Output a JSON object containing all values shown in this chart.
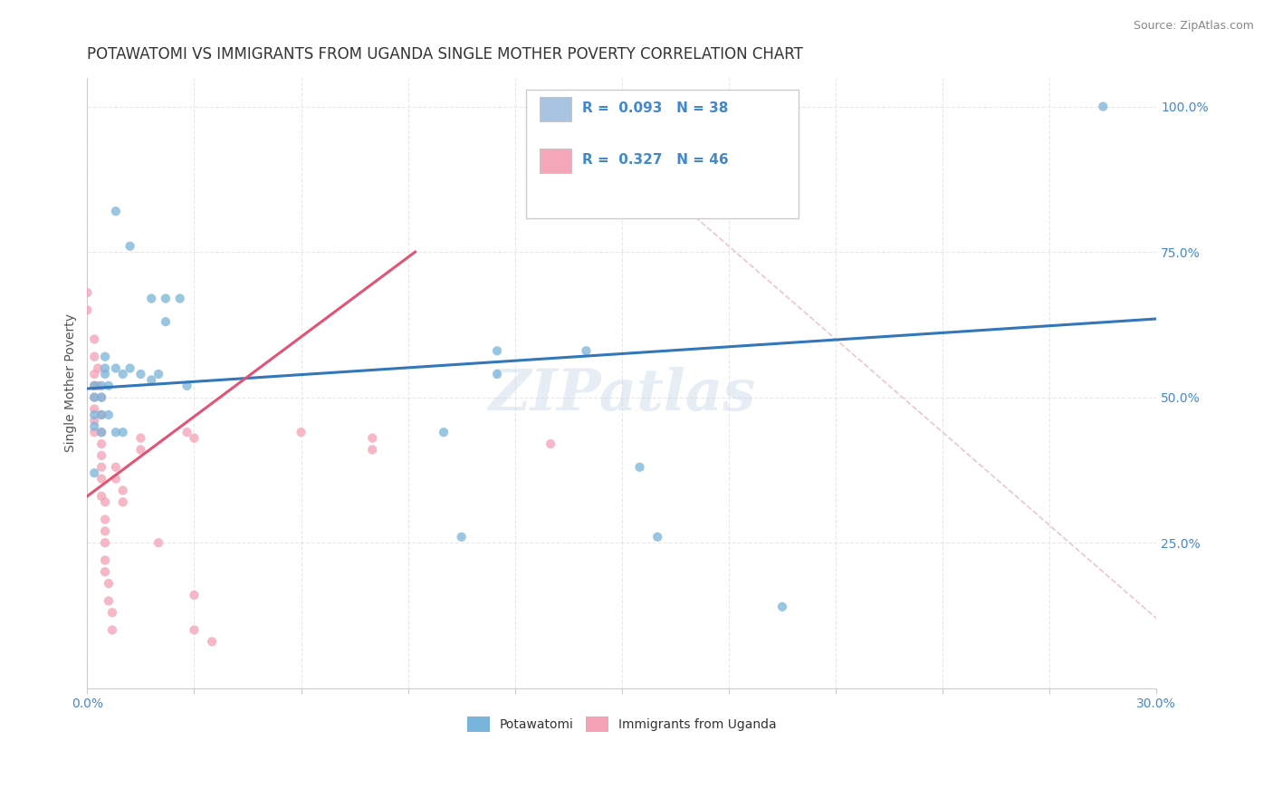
{
  "title": "POTAWATOMI VS IMMIGRANTS FROM UGANDA SINGLE MOTHER POVERTY CORRELATION CHART",
  "source": "Source: ZipAtlas.com",
  "ylabel": "Single Mother Poverty",
  "xlim": [
    0.0,
    0.3
  ],
  "ylim": [
    0.0,
    1.05
  ],
  "blue_dots": [
    [
      0.008,
      0.82
    ],
    [
      0.012,
      0.76
    ],
    [
      0.018,
      0.67
    ],
    [
      0.022,
      0.67
    ],
    [
      0.026,
      0.67
    ],
    [
      0.022,
      0.63
    ],
    [
      0.005,
      0.57
    ],
    [
      0.005,
      0.55
    ],
    [
      0.005,
      0.54
    ],
    [
      0.008,
      0.55
    ],
    [
      0.01,
      0.54
    ],
    [
      0.012,
      0.55
    ],
    [
      0.015,
      0.54
    ],
    [
      0.018,
      0.53
    ],
    [
      0.02,
      0.54
    ],
    [
      0.002,
      0.52
    ],
    [
      0.004,
      0.52
    ],
    [
      0.006,
      0.52
    ],
    [
      0.002,
      0.5
    ],
    [
      0.004,
      0.5
    ],
    [
      0.028,
      0.52
    ],
    [
      0.002,
      0.47
    ],
    [
      0.004,
      0.47
    ],
    [
      0.006,
      0.47
    ],
    [
      0.002,
      0.45
    ],
    [
      0.004,
      0.44
    ],
    [
      0.008,
      0.44
    ],
    [
      0.01,
      0.44
    ],
    [
      0.002,
      0.37
    ],
    [
      0.115,
      0.58
    ],
    [
      0.14,
      0.58
    ],
    [
      0.115,
      0.54
    ],
    [
      0.1,
      0.44
    ],
    [
      0.155,
      0.38
    ],
    [
      0.105,
      0.26
    ],
    [
      0.16,
      0.26
    ],
    [
      0.195,
      0.14
    ],
    [
      0.285,
      1.0
    ]
  ],
  "pink_dots": [
    [
      0.0,
      0.68
    ],
    [
      0.0,
      0.65
    ],
    [
      0.002,
      0.6
    ],
    [
      0.002,
      0.57
    ],
    [
      0.002,
      0.54
    ],
    [
      0.002,
      0.52
    ],
    [
      0.002,
      0.5
    ],
    [
      0.002,
      0.48
    ],
    [
      0.002,
      0.46
    ],
    [
      0.002,
      0.44
    ],
    [
      0.003,
      0.55
    ],
    [
      0.003,
      0.52
    ],
    [
      0.004,
      0.5
    ],
    [
      0.004,
      0.47
    ],
    [
      0.004,
      0.44
    ],
    [
      0.004,
      0.42
    ],
    [
      0.004,
      0.4
    ],
    [
      0.004,
      0.38
    ],
    [
      0.004,
      0.36
    ],
    [
      0.004,
      0.33
    ],
    [
      0.005,
      0.32
    ],
    [
      0.005,
      0.29
    ],
    [
      0.005,
      0.27
    ],
    [
      0.005,
      0.25
    ],
    [
      0.005,
      0.22
    ],
    [
      0.005,
      0.2
    ],
    [
      0.006,
      0.18
    ],
    [
      0.006,
      0.15
    ],
    [
      0.007,
      0.13
    ],
    [
      0.007,
      0.1
    ],
    [
      0.008,
      0.38
    ],
    [
      0.008,
      0.36
    ],
    [
      0.01,
      0.34
    ],
    [
      0.01,
      0.32
    ],
    [
      0.015,
      0.43
    ],
    [
      0.015,
      0.41
    ],
    [
      0.028,
      0.44
    ],
    [
      0.03,
      0.43
    ],
    [
      0.06,
      0.44
    ],
    [
      0.08,
      0.43
    ],
    [
      0.08,
      0.41
    ],
    [
      0.13,
      0.42
    ],
    [
      0.02,
      0.25
    ],
    [
      0.03,
      0.16
    ],
    [
      0.03,
      0.1
    ],
    [
      0.035,
      0.08
    ]
  ],
  "blue_line": {
    "x": [
      0.0,
      0.3
    ],
    "y": [
      0.515,
      0.635
    ]
  },
  "pink_line": {
    "x": [
      0.0,
      0.092
    ],
    "y": [
      0.33,
      0.75
    ]
  },
  "diag_line": {
    "x": [
      0.135,
      0.3
    ],
    "y": [
      1.0,
      0.12
    ]
  },
  "bg_color": "#ffffff",
  "grid_color": "#e8e8e8",
  "title_color": "#333333",
  "axis_color": "#4488cc",
  "blue_dot_color": "#7ab3d9",
  "pink_dot_color": "#f4a0b5",
  "blue_line_color": "#3377bb",
  "pink_line_color": "#e05575",
  "diag_line_color": "#e8c0c8",
  "watermark": "ZIPatlas",
  "dot_size": 55,
  "dot_alpha": 0.75,
  "title_fontsize": 12,
  "axis_label_fontsize": 10,
  "tick_fontsize": 10,
  "legend_entries": [
    {
      "label": "Potawatomi",
      "R": "0.093",
      "N": "38",
      "color": "#a8c4e0"
    },
    {
      "label": "Immigrants from Uganda",
      "R": "0.327",
      "N": "46",
      "color": "#f4a7b9"
    }
  ]
}
